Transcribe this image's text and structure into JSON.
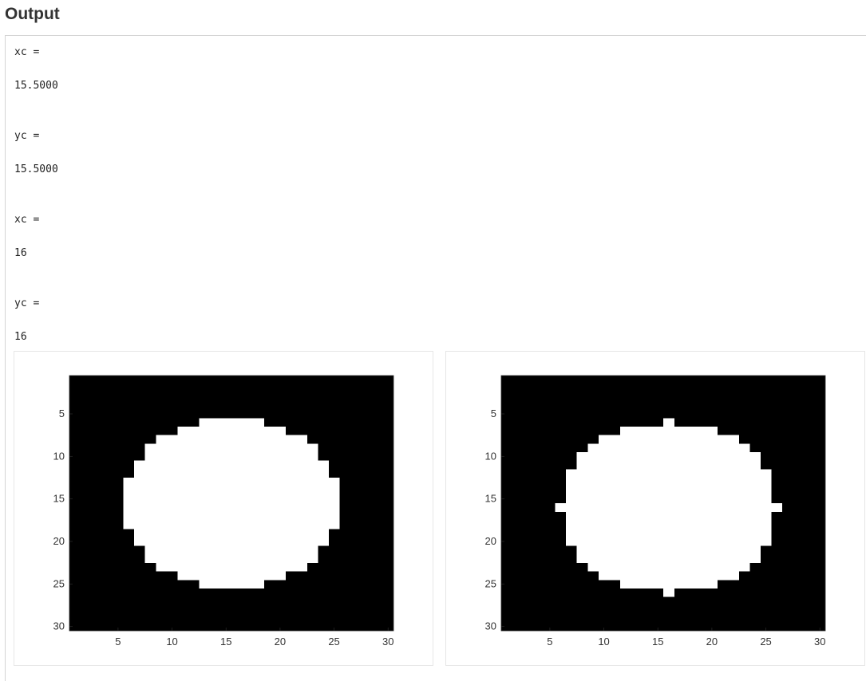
{
  "heading": "Output",
  "console_lines": [
    {
      "name": "xc",
      "label": "xc =",
      "value": "15.5000"
    },
    {
      "name": "yc",
      "label": "yc =",
      "value": "15.5000"
    },
    {
      "name": "xc",
      "label": "xc =",
      "value": "16"
    },
    {
      "name": "yc",
      "label": "yc =",
      "value": "16"
    }
  ],
  "chart_data": [
    {
      "type": "heatmap",
      "title": "",
      "xlabel": "",
      "ylabel": "",
      "colormap": [
        "#000000",
        "#ffffff"
      ],
      "xlim": [
        0.5,
        30.5
      ],
      "ylim": [
        0.5,
        30.5
      ],
      "y_direction": "reversed",
      "xticks": [
        5,
        10,
        15,
        20,
        25,
        30
      ],
      "yticks": [
        5,
        10,
        15,
        20,
        25,
        30
      ],
      "xtick_labels": [
        "5",
        "10",
        "15",
        "20",
        "25",
        "30"
      ],
      "ytick_labels": [
        "5",
        "10",
        "15",
        "20",
        "25",
        "30"
      ],
      "white_runs": [
        {
          "row": 6,
          "cols": [
            13,
            18
          ]
        },
        {
          "row": 7,
          "cols": [
            11,
            20
          ]
        },
        {
          "row": 8,
          "cols": [
            9,
            22
          ]
        },
        {
          "row": 9,
          "cols": [
            8,
            23
          ]
        },
        {
          "row": 10,
          "cols": [
            8,
            23
          ]
        },
        {
          "row": 11,
          "cols": [
            7,
            24
          ]
        },
        {
          "row": 12,
          "cols": [
            7,
            24
          ]
        },
        {
          "row": 13,
          "cols": [
            6,
            25
          ]
        },
        {
          "row": 14,
          "cols": [
            6,
            25
          ]
        },
        {
          "row": 15,
          "cols": [
            6,
            25
          ]
        },
        {
          "row": 16,
          "cols": [
            6,
            25
          ]
        },
        {
          "row": 17,
          "cols": [
            6,
            25
          ]
        },
        {
          "row": 18,
          "cols": [
            6,
            25
          ]
        },
        {
          "row": 19,
          "cols": [
            7,
            24
          ]
        },
        {
          "row": 20,
          "cols": [
            7,
            24
          ]
        },
        {
          "row": 21,
          "cols": [
            8,
            23
          ]
        },
        {
          "row": 22,
          "cols": [
            8,
            23
          ]
        },
        {
          "row": 23,
          "cols": [
            9,
            22
          ]
        },
        {
          "row": 24,
          "cols": [
            11,
            20
          ]
        },
        {
          "row": 25,
          "cols": [
            13,
            18
          ]
        }
      ]
    },
    {
      "type": "heatmap",
      "title": "",
      "xlabel": "",
      "ylabel": "",
      "colormap": [
        "#000000",
        "#ffffff"
      ],
      "xlim": [
        0.5,
        30.5
      ],
      "ylim": [
        0.5,
        30.5
      ],
      "y_direction": "reversed",
      "xticks": [
        5,
        10,
        15,
        20,
        25,
        30
      ],
      "yticks": [
        5,
        10,
        15,
        20,
        25,
        30
      ],
      "xtick_labels": [
        "5",
        "10",
        "15",
        "20",
        "25",
        "30"
      ],
      "ytick_labels": [
        "5",
        "10",
        "15",
        "20",
        "25",
        "30"
      ],
      "white_runs": [
        {
          "row": 6,
          "cols": [
            16,
            16
          ]
        },
        {
          "row": 7,
          "cols": [
            12,
            20
          ]
        },
        {
          "row": 8,
          "cols": [
            10,
            22
          ]
        },
        {
          "row": 9,
          "cols": [
            9,
            23
          ]
        },
        {
          "row": 10,
          "cols": [
            8,
            24
          ]
        },
        {
          "row": 11,
          "cols": [
            8,
            24
          ]
        },
        {
          "row": 12,
          "cols": [
            7,
            25
          ]
        },
        {
          "row": 13,
          "cols": [
            7,
            25
          ]
        },
        {
          "row": 14,
          "cols": [
            7,
            25
          ]
        },
        {
          "row": 15,
          "cols": [
            7,
            25
          ]
        },
        {
          "row": 16,
          "cols": [
            6,
            26
          ]
        },
        {
          "row": 17,
          "cols": [
            7,
            25
          ]
        },
        {
          "row": 18,
          "cols": [
            7,
            25
          ]
        },
        {
          "row": 19,
          "cols": [
            7,
            25
          ]
        },
        {
          "row": 20,
          "cols": [
            7,
            25
          ]
        },
        {
          "row": 21,
          "cols": [
            8,
            24
          ]
        },
        {
          "row": 22,
          "cols": [
            8,
            24
          ]
        },
        {
          "row": 23,
          "cols": [
            9,
            23
          ]
        },
        {
          "row": 24,
          "cols": [
            10,
            22
          ]
        },
        {
          "row": 25,
          "cols": [
            12,
            20
          ]
        },
        {
          "row": 26,
          "cols": [
            16,
            16
          ]
        }
      ]
    }
  ]
}
